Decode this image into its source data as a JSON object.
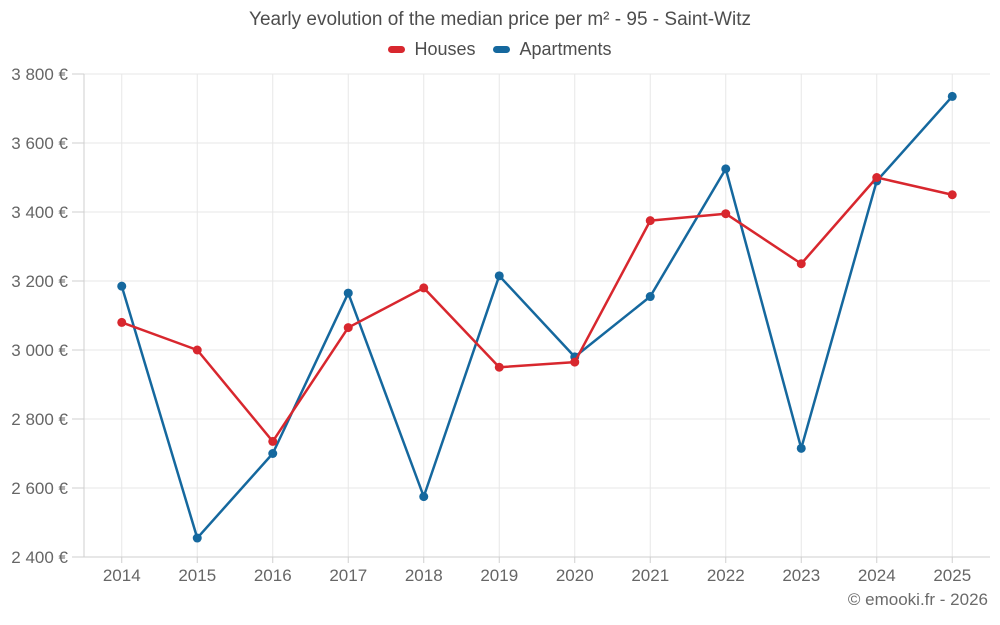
{
  "title": "Yearly evolution of the median price per m² - 95 - Saint-Witz",
  "watermark": "© emooki.fr - 2026",
  "colors": {
    "houses": "#d8272e",
    "apartments": "#15689e",
    "grid": "#e7e7e7",
    "axis": "#cfcfcf",
    "title_text": "#4d4d4d",
    "tick_text": "#666666"
  },
  "chart_data": {
    "type": "line",
    "title": "Yearly evolution of the median price per m² - 95 - Saint-Witz",
    "categories": [
      "2014",
      "2015",
      "2016",
      "2017",
      "2018",
      "2019",
      "2020",
      "2021",
      "2022",
      "2023",
      "2024",
      "2025"
    ],
    "series": [
      {
        "name": "Houses",
        "color": "#d8272e",
        "values": [
          3080,
          3000,
          2735,
          3065,
          3180,
          2950,
          2965,
          3375,
          3395,
          3250,
          3500,
          3450
        ]
      },
      {
        "name": "Apartments",
        "color": "#15689e",
        "values": [
          3185,
          2455,
          2700,
          3165,
          2575,
          3215,
          2980,
          3155,
          3525,
          2715,
          3490,
          3735
        ]
      }
    ],
    "ylabel": "",
    "xlabel": "",
    "ylim": [
      2400,
      3800
    ],
    "ytick_step": 200,
    "ytick_labels": [
      "2 400 €",
      "2 600 €",
      "2 800 €",
      "3 000 €",
      "3 200 €",
      "3 400 €",
      "3 600 €",
      "3 800 €"
    ],
    "grid": true,
    "legend_position": "top",
    "marker": "circle"
  }
}
